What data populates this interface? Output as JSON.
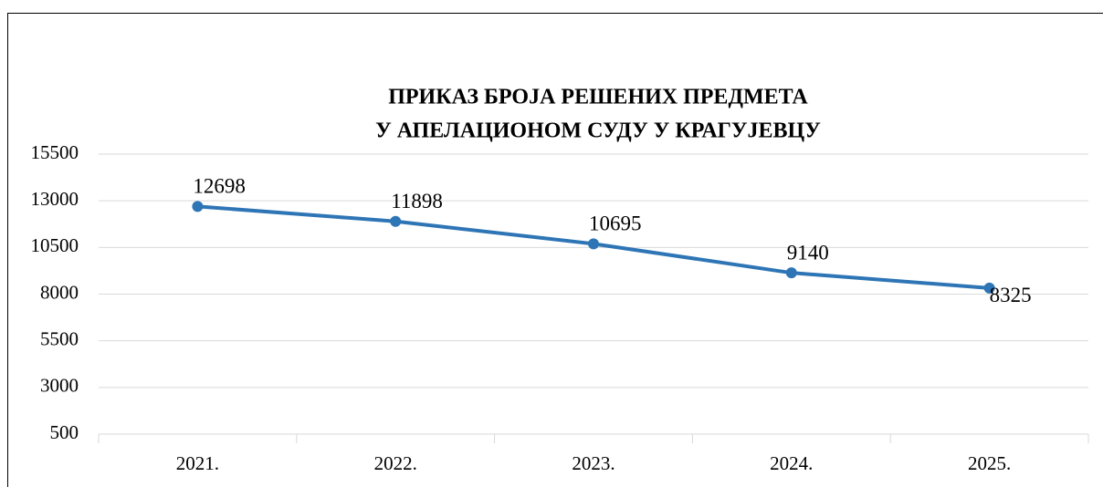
{
  "chart_data": {
    "type": "line",
    "title": [
      "ПРИКАЗ БРОЈА РЕШЕНИХ ПРЕДМЕТА",
      "У АПЕЛАЦИОНОМ СУДУ У КРАГУЈЕВЦУ"
    ],
    "categories": [
      "2021.",
      "2022.",
      "2023.",
      "2024.",
      "2025."
    ],
    "values": [
      12698,
      11898,
      10695,
      9140,
      8325
    ],
    "color": "#2e75b6",
    "ylim": [
      500,
      15500
    ],
    "yticks": [
      500,
      3000,
      5500,
      8000,
      10500,
      13000,
      15500
    ],
    "grid": true
  }
}
